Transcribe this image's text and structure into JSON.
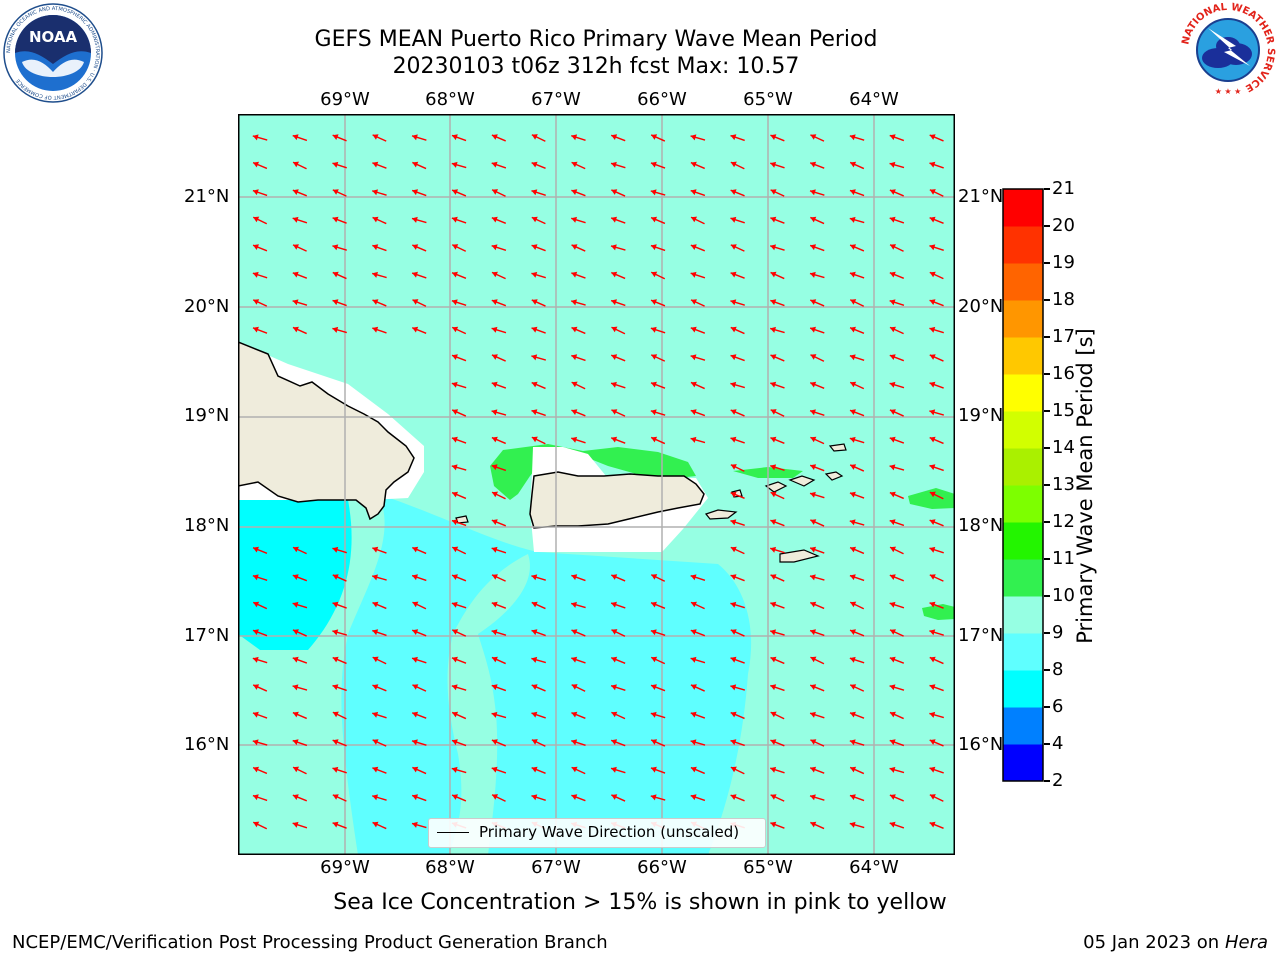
{
  "header": {
    "title_line1": "GEFS MEAN Puerto Rico Primary Wave Mean Period",
    "title_line2": "20230103 t06z 312h fcst   Max: 10.57"
  },
  "logos": {
    "noaa_text": "NOAA",
    "noaa_ring_text": "NATIONAL OCEANIC AND ATMOSPHERIC ADMINISTRATION · U.S. DEPARTMENT OF COMMERCE",
    "nws_ring_text": "NATIONAL WEATHER SERVICE"
  },
  "map": {
    "lon_labels": [
      "69°W",
      "68°W",
      "67°W",
      "66°W",
      "65°W",
      "64°W"
    ],
    "lat_labels": [
      "21°N",
      "20°N",
      "19°N",
      "18°N",
      "17°N",
      "16°N"
    ],
    "legend_label": "Primary Wave Direction (unscaled)",
    "arrow_color": "#ff0000",
    "land_color": "#efecdc",
    "grid_color": "#b0b0b0"
  },
  "colorbar": {
    "label": "Primary Wave Mean Period [s]",
    "ticks": [
      "2",
      "4",
      "6",
      "8",
      "9",
      "10",
      "11",
      "12",
      "13",
      "14",
      "15",
      "16",
      "17",
      "18",
      "19",
      "20",
      "21"
    ],
    "colors": [
      "#0000ff",
      "#0080ff",
      "#00ffff",
      "#5fffff",
      "#96ffe3",
      "#32f050",
      "#23f500",
      "#7dff00",
      "#aaf000",
      "#d2ff00",
      "#ffff00",
      "#ffc800",
      "#ff9600",
      "#ff6400",
      "#ff3200",
      "#ff0000"
    ]
  },
  "footer": {
    "ice_note": "Sea Ice Concentration > 15% is shown in pink to yellow",
    "left": "NCEP/EMC/Verification Post Processing Product Generation Branch",
    "date": "05 Jan 2023 on ",
    "machine": "Hera"
  }
}
